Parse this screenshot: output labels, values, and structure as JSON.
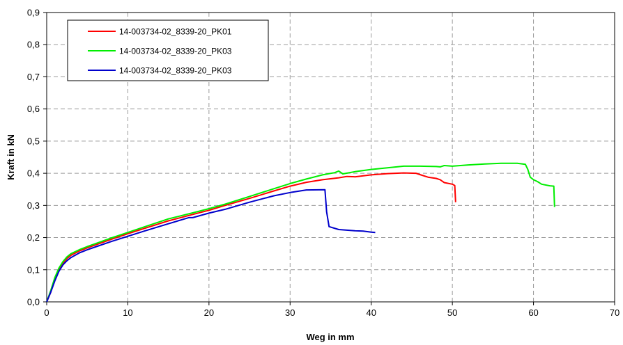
{
  "chart_data": {
    "type": "line",
    "xlabel": "Weg in mm",
    "ylabel": "Kraft in kN",
    "xlim": [
      0,
      70
    ],
    "ylim": [
      0,
      0.9
    ],
    "x_ticks": [
      "0",
      "10",
      "20",
      "30",
      "40",
      "50",
      "60",
      "70"
    ],
    "y_ticks": [
      "0,0",
      "0,1",
      "0,2",
      "0,3",
      "0,4",
      "0,5",
      "0,6",
      "0,7",
      "0,8",
      "0,9"
    ],
    "grid": true,
    "legend_position": "top-left",
    "series": [
      {
        "name": "14-003734-02_8339-20_PK01",
        "color": "#ff0000",
        "points": [
          [
            0,
            0
          ],
          [
            0.5,
            0.03
          ],
          [
            1,
            0.07
          ],
          [
            1.5,
            0.1
          ],
          [
            2,
            0.12
          ],
          [
            2.5,
            0.135
          ],
          [
            3,
            0.145
          ],
          [
            4,
            0.158
          ],
          [
            5,
            0.168
          ],
          [
            6,
            0.177
          ],
          [
            8,
            0.195
          ],
          [
            10,
            0.212
          ],
          [
            12,
            0.228
          ],
          [
            15,
            0.252
          ],
          [
            18,
            0.272
          ],
          [
            20,
            0.285
          ],
          [
            22,
            0.3
          ],
          [
            25,
            0.322
          ],
          [
            28,
            0.345
          ],
          [
            30,
            0.36
          ],
          [
            32,
            0.372
          ],
          [
            34,
            0.38
          ],
          [
            36,
            0.386
          ],
          [
            37,
            0.39
          ],
          [
            38,
            0.389
          ],
          [
            40,
            0.395
          ],
          [
            42,
            0.399
          ],
          [
            44,
            0.401
          ],
          [
            45.5,
            0.4
          ],
          [
            46,
            0.396
          ],
          [
            47,
            0.388
          ],
          [
            48,
            0.384
          ],
          [
            48.5,
            0.38
          ],
          [
            49,
            0.371
          ],
          [
            50,
            0.366
          ],
          [
            50.3,
            0.362
          ],
          [
            50.4,
            0.31
          ]
        ]
      },
      {
        "name": "14-003734-02_8339-20_PK03",
        "color": "#00ee00",
        "points": [
          [
            0,
            0
          ],
          [
            0.5,
            0.035
          ],
          [
            1,
            0.075
          ],
          [
            1.5,
            0.105
          ],
          [
            2,
            0.125
          ],
          [
            2.5,
            0.14
          ],
          [
            3,
            0.15
          ],
          [
            4,
            0.162
          ],
          [
            5,
            0.172
          ],
          [
            6,
            0.181
          ],
          [
            8,
            0.199
          ],
          [
            10,
            0.216
          ],
          [
            12,
            0.233
          ],
          [
            15,
            0.258
          ],
          [
            18,
            0.277
          ],
          [
            20,
            0.29
          ],
          [
            22,
            0.304
          ],
          [
            25,
            0.328
          ],
          [
            28,
            0.352
          ],
          [
            30,
            0.368
          ],
          [
            32,
            0.382
          ],
          [
            34,
            0.395
          ],
          [
            35.5,
            0.402
          ],
          [
            36,
            0.407
          ],
          [
            36.5,
            0.398
          ],
          [
            38,
            0.405
          ],
          [
            40,
            0.412
          ],
          [
            42,
            0.417
          ],
          [
            44,
            0.422
          ],
          [
            46,
            0.422
          ],
          [
            48,
            0.421
          ],
          [
            48.5,
            0.42
          ],
          [
            49,
            0.424
          ],
          [
            50,
            0.422
          ],
          [
            52,
            0.426
          ],
          [
            54,
            0.429
          ],
          [
            56,
            0.431
          ],
          [
            58,
            0.431
          ],
          [
            59,
            0.428
          ],
          [
            59.3,
            0.412
          ],
          [
            59.6,
            0.388
          ],
          [
            60,
            0.38
          ],
          [
            60.5,
            0.374
          ],
          [
            61,
            0.366
          ],
          [
            62,
            0.361
          ],
          [
            62.5,
            0.36
          ],
          [
            62.6,
            0.295
          ]
        ]
      },
      {
        "name": "14-003734-02_8339-20_PK03",
        "color": "#0000cc",
        "points": [
          [
            0,
            0
          ],
          [
            0.5,
            0.03
          ],
          [
            1,
            0.065
          ],
          [
            1.5,
            0.095
          ],
          [
            2,
            0.115
          ],
          [
            2.5,
            0.128
          ],
          [
            3,
            0.138
          ],
          [
            4,
            0.152
          ],
          [
            5,
            0.162
          ],
          [
            6,
            0.171
          ],
          [
            8,
            0.188
          ],
          [
            10,
            0.204
          ],
          [
            12,
            0.22
          ],
          [
            15,
            0.243
          ],
          [
            17.5,
            0.262
          ],
          [
            18,
            0.262
          ],
          [
            20,
            0.276
          ],
          [
            22,
            0.288
          ],
          [
            25,
            0.31
          ],
          [
            28,
            0.33
          ],
          [
            30,
            0.34
          ],
          [
            32,
            0.348
          ],
          [
            34.3,
            0.349
          ],
          [
            34.5,
            0.28
          ],
          [
            34.8,
            0.234
          ],
          [
            36,
            0.225
          ],
          [
            38,
            0.221
          ],
          [
            39,
            0.22
          ],
          [
            40,
            0.217
          ],
          [
            40.5,
            0.216
          ]
        ]
      }
    ]
  }
}
